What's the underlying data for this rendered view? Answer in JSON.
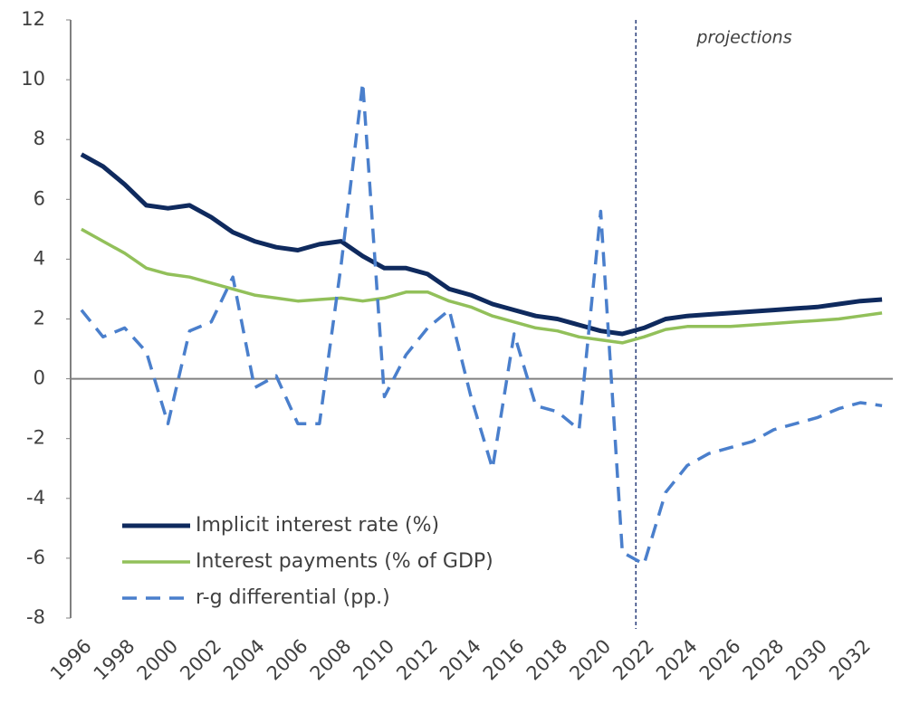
{
  "chart_data": {
    "type": "line",
    "annotation": "projections",
    "categories": [
      "1996",
      null,
      "1998",
      null,
      "2000",
      null,
      "2002",
      null,
      "2004",
      null,
      "2006",
      null,
      "2008",
      null,
      "2010",
      null,
      "2012",
      null,
      "2014",
      null,
      "2016",
      null,
      "2018",
      null,
      "2020",
      null,
      "2022",
      null,
      "2024",
      null,
      "2026",
      null,
      "2028",
      null,
      "2030",
      null,
      "2032",
      null
    ],
    "series": [
      {
        "name": "Implicit interest rate (%)",
        "color": "#0f2a5e",
        "style": "solid",
        "values": [
          7.5,
          7.1,
          6.5,
          5.8,
          5.7,
          5.8,
          5.4,
          4.9,
          4.6,
          4.4,
          4.3,
          4.5,
          4.6,
          4.1,
          3.7,
          3.7,
          3.5,
          3.0,
          2.8,
          2.5,
          2.3,
          2.1,
          2.0,
          1.8,
          1.6,
          1.5,
          1.7,
          2.0,
          2.1,
          2.15,
          2.2,
          2.25,
          2.3,
          2.35,
          2.4,
          2.5,
          2.6,
          2.65
        ]
      },
      {
        "name": "Interest payments (% of GDP)",
        "color": "#92c05a",
        "style": "solid",
        "values": [
          5.0,
          4.6,
          4.2,
          3.7,
          3.5,
          3.4,
          3.2,
          3.0,
          2.8,
          2.7,
          2.6,
          2.65,
          2.7,
          2.6,
          2.7,
          2.9,
          2.9,
          2.6,
          2.4,
          2.1,
          1.9,
          1.7,
          1.6,
          1.4,
          1.3,
          1.2,
          1.4,
          1.65,
          1.75,
          1.75,
          1.75,
          1.8,
          1.85,
          1.9,
          1.95,
          2.0,
          2.1,
          2.2
        ]
      },
      {
        "name": "r-g differential (pp.)",
        "color": "#4a7fcc",
        "style": "dashed",
        "values": [
          2.3,
          1.4,
          1.7,
          0.9,
          -1.5,
          1.6,
          1.9,
          3.4,
          -0.3,
          0.1,
          -1.5,
          -1.5,
          3.8,
          9.9,
          -0.6,
          0.8,
          1.7,
          2.3,
          -0.6,
          -3.0,
          1.5,
          -0.9,
          -1.1,
          -1.7,
          5.6,
          -5.8,
          -6.2,
          -3.8,
          -2.9,
          -2.5,
          -2.3,
          -2.1,
          -1.7,
          -1.5,
          -1.3,
          -1.0,
          -0.8,
          -0.9
        ]
      }
    ],
    "ylim": [
      -8,
      12
    ],
    "yticks": [
      -8,
      -6,
      -4,
      -2,
      0,
      2,
      4,
      6,
      8,
      10,
      12
    ],
    "grid": false,
    "legend": "lower left"
  }
}
